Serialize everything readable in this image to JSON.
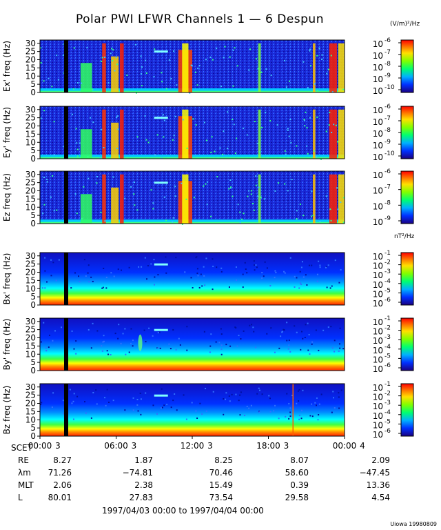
{
  "title": "Polar PWI LFWR Channels 1 — 6 Despun",
  "units_e": "(V/m)²/Hz",
  "units_b": "nT²/Hz",
  "chart_data": {
    "type": "heatmap",
    "panels": [
      {
        "ylabel": "Ex' freq (Hz)",
        "yticks": [
          0,
          5,
          10,
          15,
          20,
          25,
          30
        ],
        "ylim": [
          0,
          32
        ],
        "cbar_exps": [
          -6,
          -7,
          -8,
          -9,
          -10
        ],
        "kind": "E"
      },
      {
        "ylabel": "Ey' freq (Hz)",
        "yticks": [
          0,
          5,
          10,
          15,
          20,
          25,
          30
        ],
        "ylim": [
          0,
          32
        ],
        "cbar_exps": [
          -6,
          -7,
          -8,
          -9,
          -10
        ],
        "kind": "E"
      },
      {
        "ylabel": "Ez freq (Hz)",
        "yticks": [
          0,
          5,
          10,
          15,
          20,
          25,
          30
        ],
        "ylim": [
          0,
          32
        ],
        "cbar_exps": [
          -6,
          -7,
          -8,
          -9
        ],
        "kind": "E"
      },
      {
        "ylabel": "Bx' freq (Hz)",
        "yticks": [
          0,
          5,
          10,
          15,
          20,
          25,
          30
        ],
        "ylim": [
          0,
          32
        ],
        "cbar_exps": [
          -1,
          -2,
          -3,
          -4,
          -5,
          -6
        ],
        "kind": "B"
      },
      {
        "ylabel": "By' freq (Hz)",
        "yticks": [
          0,
          5,
          10,
          15,
          20,
          25,
          30
        ],
        "ylim": [
          0,
          32
        ],
        "cbar_exps": [
          -1,
          -2,
          -3,
          -4,
          -5,
          -6
        ],
        "kind": "B"
      },
      {
        "ylabel": "Bz freq (Hz)",
        "yticks": [
          0,
          5,
          10,
          15,
          20,
          25,
          30
        ],
        "ylim": [
          0,
          32
        ],
        "cbar_exps": [
          -1,
          -2,
          -3,
          -4,
          -5,
          -6
        ],
        "kind": "B"
      }
    ],
    "x_ticks": [
      "00:00",
      "06:00",
      "12:00",
      "18:00",
      "00:00"
    ],
    "x_day_labels": [
      "3",
      "3",
      "3",
      "3",
      "4"
    ],
    "ephemeris": {
      "rows": [
        {
          "label": "SCET",
          "values": []
        },
        {
          "label": "RE",
          "values": [
            "8.27",
            "1.87",
            "8.25",
            "8.07",
            "2.09"
          ]
        },
        {
          "label": "λm",
          "values": [
            "71.26",
            "−74.81",
            "70.46",
            "58.60",
            "−47.45"
          ]
        },
        {
          "label": "MLT",
          "values": [
            "2.06",
            "2.38",
            "15.49",
            "0.39",
            "13.36"
          ]
        },
        {
          "label": "L",
          "values": [
            "80.01",
            "27.83",
            "73.54",
            "29.58",
            "4.54"
          ]
        }
      ]
    },
    "date_range": "1997/04/03 00:00 to 1997/04/04 00:00"
  },
  "stamp": "Uiowa 19980809"
}
